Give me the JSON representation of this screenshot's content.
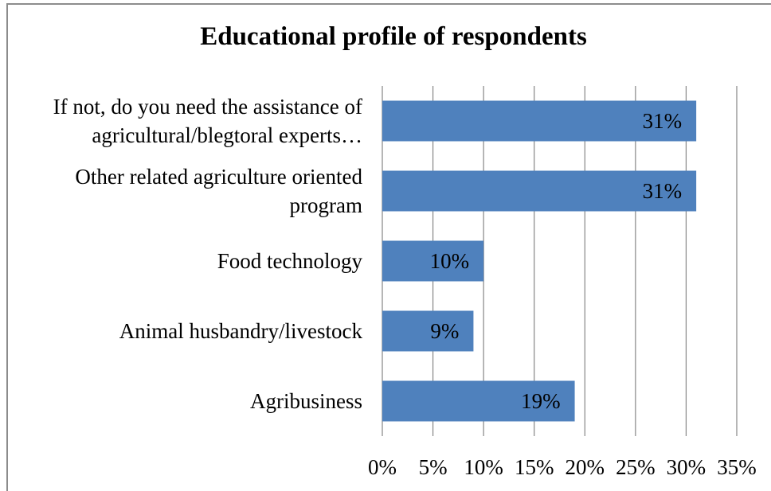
{
  "chart_data": {
    "type": "bar",
    "orientation": "horizontal",
    "title": "Educational profile of respondents",
    "categories": [
      "If not, do you need the assistance of agricultural/blegtoral experts…",
      "Other related agriculture oriented program",
      "Food technology",
      "Animal husbandry/livestock",
      "Agribusiness"
    ],
    "category_lines": [
      [
        "If not, do you need the assistance of",
        "agricultural/blegtoral experts…"
      ],
      [
        "Other related agriculture oriented",
        "program"
      ],
      [
        "Food technology"
      ],
      [
        "Animal husbandry/livestock"
      ],
      [
        "Agribusiness"
      ]
    ],
    "values": [
      31,
      31,
      10,
      9,
      19
    ],
    "data_labels": [
      "31%",
      "31%",
      "10%",
      "9%",
      "19%"
    ],
    "xlim": [
      0,
      35
    ],
    "x_ticks": [
      0,
      5,
      10,
      15,
      20,
      25,
      30,
      35
    ],
    "x_tick_labels": [
      "0%",
      "5%",
      "10%",
      "15%",
      "20%",
      "25%",
      "30%",
      "35%"
    ],
    "xlabel": "",
    "ylabel": "",
    "grid": "vertical",
    "legend": "none",
    "colors": {
      "bar": "#4f81bd",
      "grid": "#868686",
      "frame": "#8c8c8c"
    }
  }
}
